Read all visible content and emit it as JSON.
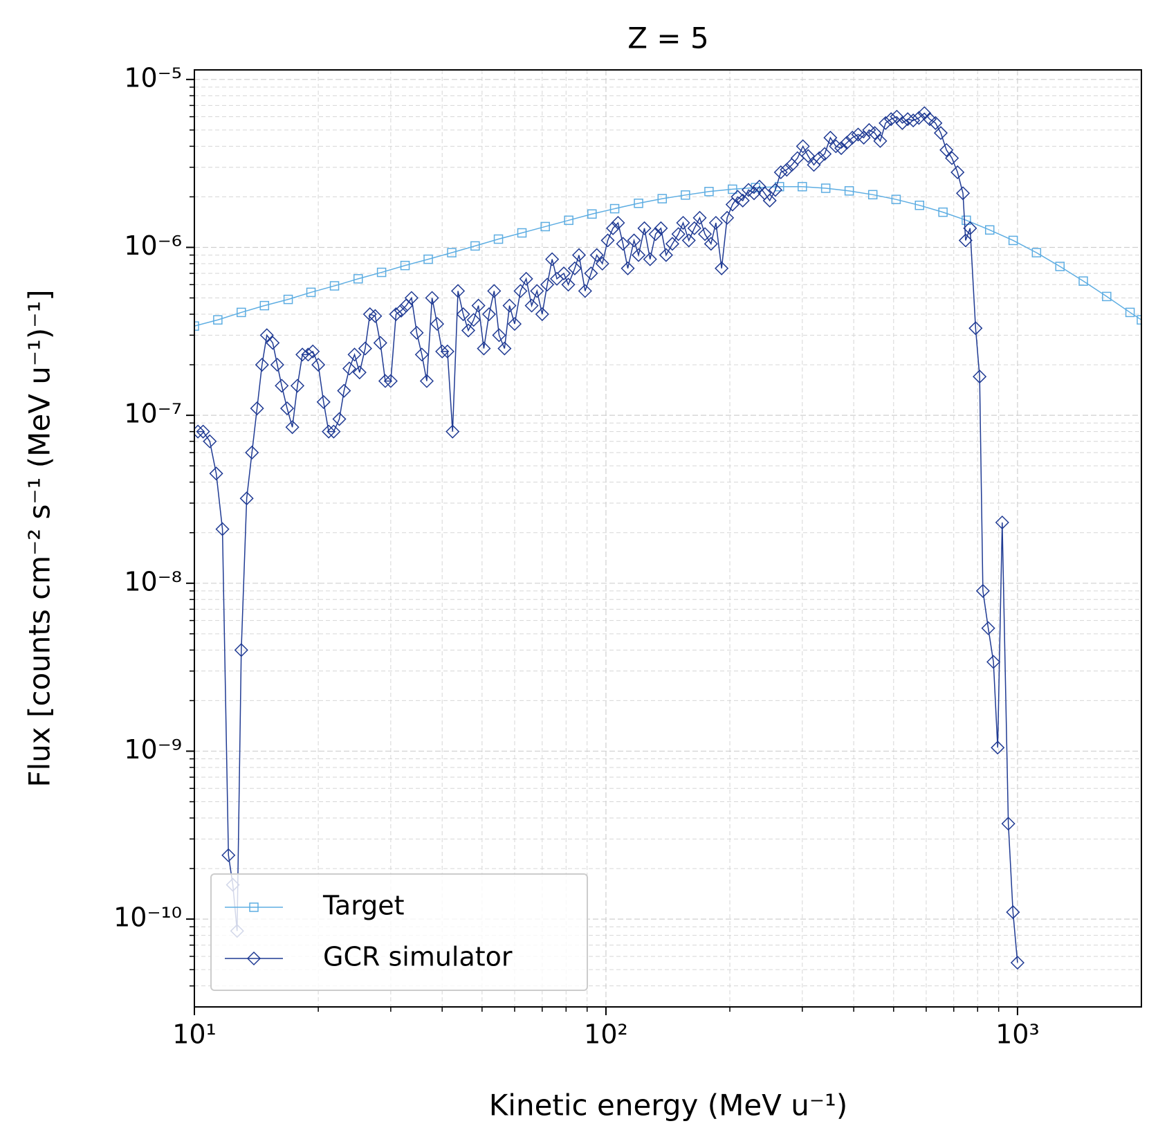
{
  "chart_data": {
    "type": "line",
    "title": "Z = 5",
    "x_label": "Kinetic energy (MeV u⁻¹)",
    "y_label": "Flux [counts cm⁻² s⁻¹ (MeV u⁻¹)⁻¹]",
    "xscale": "log",
    "yscale": "log",
    "grid": true,
    "legend": "lower left",
    "xlim": [
      10,
      2000
    ],
    "ylim": [
      3e-11,
      1.14e-05
    ],
    "xticks": [
      {
        "value": 10,
        "label": "10¹"
      },
      {
        "value": 100,
        "label": "10²"
      },
      {
        "value": 1000,
        "label": "10³"
      }
    ],
    "yticks": [
      {
        "value": 1e-10,
        "label": "10⁻¹⁰"
      },
      {
        "value": 1e-09,
        "label": "10⁻⁹"
      },
      {
        "value": 1e-08,
        "label": "10⁻⁸"
      },
      {
        "value": 1e-07,
        "label": "10⁻⁷"
      },
      {
        "value": 1e-06,
        "label": "10⁻⁶"
      },
      {
        "value": 1e-05,
        "label": "10⁻⁵"
      }
    ],
    "series": [
      {
        "name": "Target",
        "color": "#5dade2",
        "marker": "square",
        "x": [
          10,
          11.4,
          13,
          14.8,
          16.9,
          19.2,
          21.9,
          25,
          28.5,
          32.5,
          37,
          42.2,
          48.1,
          54.8,
          62.5,
          71.2,
          81.2,
          92.5,
          105,
          120,
          137,
          156,
          178,
          203,
          231,
          264,
          300,
          342,
          390,
          445,
          507,
          578,
          659,
          751,
          856,
          976,
          1112,
          1268,
          1445,
          1647,
          1877,
          2000
        ],
        "values": [
          3.4e-07,
          3.7e-07,
          4.1e-07,
          4.5e-07,
          4.9e-07,
          5.4e-07,
          5.9e-07,
          6.5e-07,
          7.1e-07,
          7.8e-07,
          8.5e-07,
          9.3e-07,
          1.02e-06,
          1.12e-06,
          1.22e-06,
          1.33e-06,
          1.45e-06,
          1.58e-06,
          1.7e-06,
          1.83e-06,
          1.95e-06,
          2.05e-06,
          2.15e-06,
          2.22e-06,
          2.27e-06,
          2.3e-06,
          2.3e-06,
          2.25e-06,
          2.17e-06,
          2.06e-06,
          1.93e-06,
          1.78e-06,
          1.62e-06,
          1.45e-06,
          1.27e-06,
          1.1e-06,
          9.3e-07,
          7.7e-07,
          6.3e-07,
          5.1e-07,
          4.1e-07,
          3.7e-07
        ]
      },
      {
        "name": "GCR simulator",
        "color": "#1f3a93",
        "marker": "diamond",
        "x": [
          10.2,
          10.5,
          10.9,
          11.3,
          11.7,
          12.1,
          12.4,
          12.7,
          13.0,
          13.4,
          13.8,
          14.2,
          14.6,
          15.0,
          15.5,
          15.9,
          16.3,
          16.8,
          17.3,
          17.8,
          18.3,
          18.9,
          19.4,
          20,
          20.6,
          21.2,
          21.8,
          22.5,
          23.1,
          23.8,
          24.5,
          25.2,
          26,
          26.7,
          27.5,
          28.3,
          29.1,
          30,
          30.9,
          31.8,
          32.7,
          33.7,
          34.7,
          35.7,
          36.7,
          37.8,
          38.9,
          40,
          41.2,
          42.4,
          43.7,
          45,
          46.3,
          47.7,
          49,
          50.5,
          52,
          53.5,
          55,
          56.7,
          58.3,
          60,
          62,
          64,
          66,
          68,
          70,
          72,
          74,
          76,
          79,
          81,
          84,
          86,
          89,
          92,
          95,
          98,
          101,
          104,
          107,
          110,
          113,
          117,
          120,
          124,
          128,
          132,
          136,
          140,
          145,
          150,
          154,
          159,
          164,
          169,
          174,
          180,
          185,
          191,
          197,
          203,
          209,
          215,
          222,
          229,
          236,
          243,
          250,
          258,
          266,
          275,
          283,
          292,
          301,
          310,
          320,
          330,
          340,
          351,
          362,
          373,
          385,
          397,
          410,
          423,
          436,
          450,
          464,
          478,
          493,
          509,
          525,
          541,
          558,
          576,
          594,
          612,
          632,
          651,
          672,
          693,
          715,
          737,
          748,
          767,
          791,
          809,
          824,
          849,
          874,
          895,
          918,
          950,
          975,
          1000
        ],
        "values": [
          8e-08,
          8e-08,
          7e-08,
          4.5e-08,
          2.1e-08,
          2.4e-10,
          1.6e-10,
          8.5e-11,
          4e-09,
          3.2e-08,
          6e-08,
          1.1e-07,
          2e-07,
          3e-07,
          2.7e-07,
          2e-07,
          1.5e-07,
          1.1e-07,
          8.5e-08,
          1.5e-07,
          2.3e-07,
          2.3e-07,
          2.4e-07,
          2e-07,
          1.2e-07,
          8e-08,
          8e-08,
          9.5e-08,
          1.4e-07,
          1.9e-07,
          2.3e-07,
          1.8e-07,
          2.5e-07,
          4e-07,
          3.9e-07,
          2.7e-07,
          1.6e-07,
          1.6e-07,
          4e-07,
          4.2e-07,
          4.5e-07,
          5e-07,
          3.1e-07,
          2.3e-07,
          1.6e-07,
          5e-07,
          3.5e-07,
          2.4e-07,
          2.4e-07,
          8e-08,
          5.5e-07,
          4e-07,
          3.2e-07,
          3.7e-07,
          4.5e-07,
          2.5e-07,
          4e-07,
          5.5e-07,
          3e-07,
          2.5e-07,
          4.5e-07,
          3.5e-07,
          5.5e-07,
          6.5e-07,
          4.5e-07,
          5.5e-07,
          4e-07,
          6e-07,
          8.5e-07,
          6.5e-07,
          7e-07,
          6e-07,
          7.5e-07,
          9e-07,
          5.5e-07,
          7e-07,
          9e-07,
          8e-07,
          1.1e-06,
          1.3e-06,
          1.4e-06,
          1.05e-06,
          7.5e-07,
          1.1e-06,
          9e-07,
          1.3e-06,
          8.5e-07,
          1.2e-06,
          1.3e-06,
          9e-07,
          1.05e-06,
          1.2e-06,
          1.4e-06,
          1.1e-06,
          1.3e-06,
          1.5e-06,
          1.2e-06,
          1.05e-06,
          1.4e-06,
          7.5e-07,
          1.5e-06,
          1.8e-06,
          2e-06,
          1.9e-06,
          2.2e-06,
          2.1e-06,
          2.3e-06,
          2.1e-06,
          1.9e-06,
          2.2e-06,
          2.8e-06,
          2.9e-06,
          3.1e-06,
          3.4e-06,
          4e-06,
          3.5e-06,
          3.1e-06,
          3.4e-06,
          3.6e-06,
          4.5e-06,
          4e-06,
          3.9e-06,
          4.2e-06,
          4.5e-06,
          4.7e-06,
          4.5e-06,
          5e-06,
          4.8e-06,
          4.3e-06,
          5.5e-06,
          5.8e-06,
          6e-06,
          5.5e-06,
          5.8e-06,
          5.7e-06,
          5.9e-06,
          6.3e-06,
          5.8e-06,
          5.5e-06,
          4.8e-06,
          3.8e-06,
          3.4e-06,
          2.8e-06,
          2.1e-06,
          1.1e-06,
          1.3e-06,
          3.3e-07,
          1.7e-07,
          9e-09,
          5.4e-09,
          3.4e-09,
          1.05e-09,
          2.3e-08,
          3.7e-10,
          1.1e-10,
          5.5e-11
        ]
      }
    ]
  }
}
